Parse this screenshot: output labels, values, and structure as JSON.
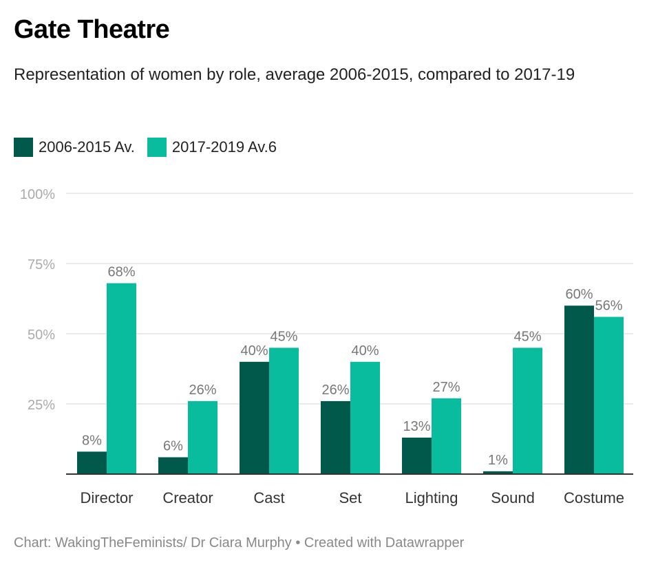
{
  "title": "Gate Theatre",
  "subtitle": "Representation of women by role, average 2006-2015, compared to 2017-19",
  "footer": "Chart: WakingTheFeminists/ Dr Ciara Murphy • Created with Datawrapper",
  "chart_data": {
    "type": "bar",
    "categories": [
      "Director",
      "Creator",
      "Cast",
      "Set",
      "Lighting",
      "Sound",
      "Costume"
    ],
    "series": [
      {
        "name": "2006-2015 Av.",
        "color": "#00594a",
        "values": [
          8,
          6,
          40,
          26,
          13,
          1,
          60
        ]
      },
      {
        "name": "2017-2019 Av.6",
        "color": "#0abc9e",
        "values": [
          68,
          26,
          45,
          40,
          27,
          45,
          56
        ]
      }
    ],
    "ylim": [
      0,
      100
    ],
    "yticks": [
      25,
      50,
      75,
      100
    ],
    "ytick_labels": [
      "25%",
      "50%",
      "75%",
      "100%"
    ],
    "value_suffix": "%",
    "grid": true,
    "legend_placement": "top-left"
  }
}
